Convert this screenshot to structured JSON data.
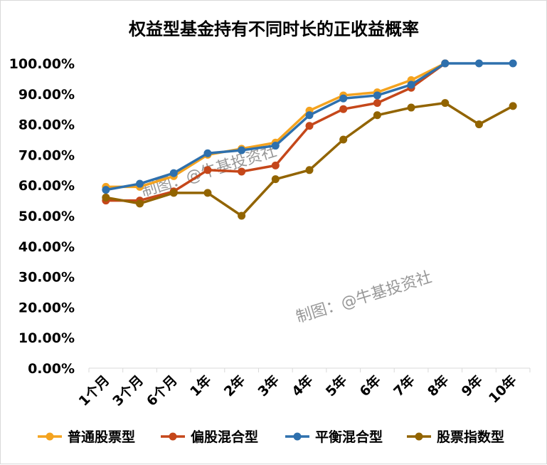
{
  "chart_data": {
    "type": "line",
    "title": "权益型基金持有不同时长的正收益概率",
    "xlabel": "",
    "ylabel": "",
    "categories": [
      "1个月",
      "3个月",
      "6个月",
      "1年",
      "2年",
      "3年",
      "4年",
      "5年",
      "6年",
      "7年",
      "8年",
      "9年",
      "10年"
    ],
    "ylim": [
      0,
      100
    ],
    "yticks": [
      "0.00%",
      "10.00%",
      "20.00%",
      "30.00%",
      "40.00%",
      "50.00%",
      "60.00%",
      "70.00%",
      "80.00%",
      "90.00%",
      "100.00%"
    ],
    "grid": false,
    "legend": "bottom",
    "series": [
      {
        "name": "普通股票型",
        "color": "#f4a31f",
        "values": [
          59.5,
          59.5,
          63.0,
          70.0,
          72.0,
          74.0,
          84.5,
          89.5,
          90.5,
          94.5,
          100.0,
          null,
          null
        ]
      },
      {
        "name": "偏股混合型",
        "color": "#c5471a",
        "values": [
          55.0,
          55.0,
          58.0,
          65.0,
          64.5,
          66.5,
          79.5,
          85.0,
          87.0,
          92.0,
          100.0,
          null,
          null
        ]
      },
      {
        "name": "平衡混合型",
        "color": "#2e70ad",
        "values": [
          58.5,
          60.5,
          64.0,
          70.5,
          71.5,
          73.0,
          83.0,
          88.5,
          89.5,
          93.0,
          100.0,
          100.0,
          100.0
        ]
      },
      {
        "name": "股票指数型",
        "color": "#926400",
        "values": [
          56.0,
          54.0,
          57.5,
          57.5,
          50.0,
          62.0,
          65.0,
          75.0,
          83.0,
          85.5,
          87.0,
          80.0,
          86.0
        ]
      }
    ],
    "watermarks": [
      "制图：@牛基投资社",
      "制图：@牛基投资社"
    ]
  }
}
